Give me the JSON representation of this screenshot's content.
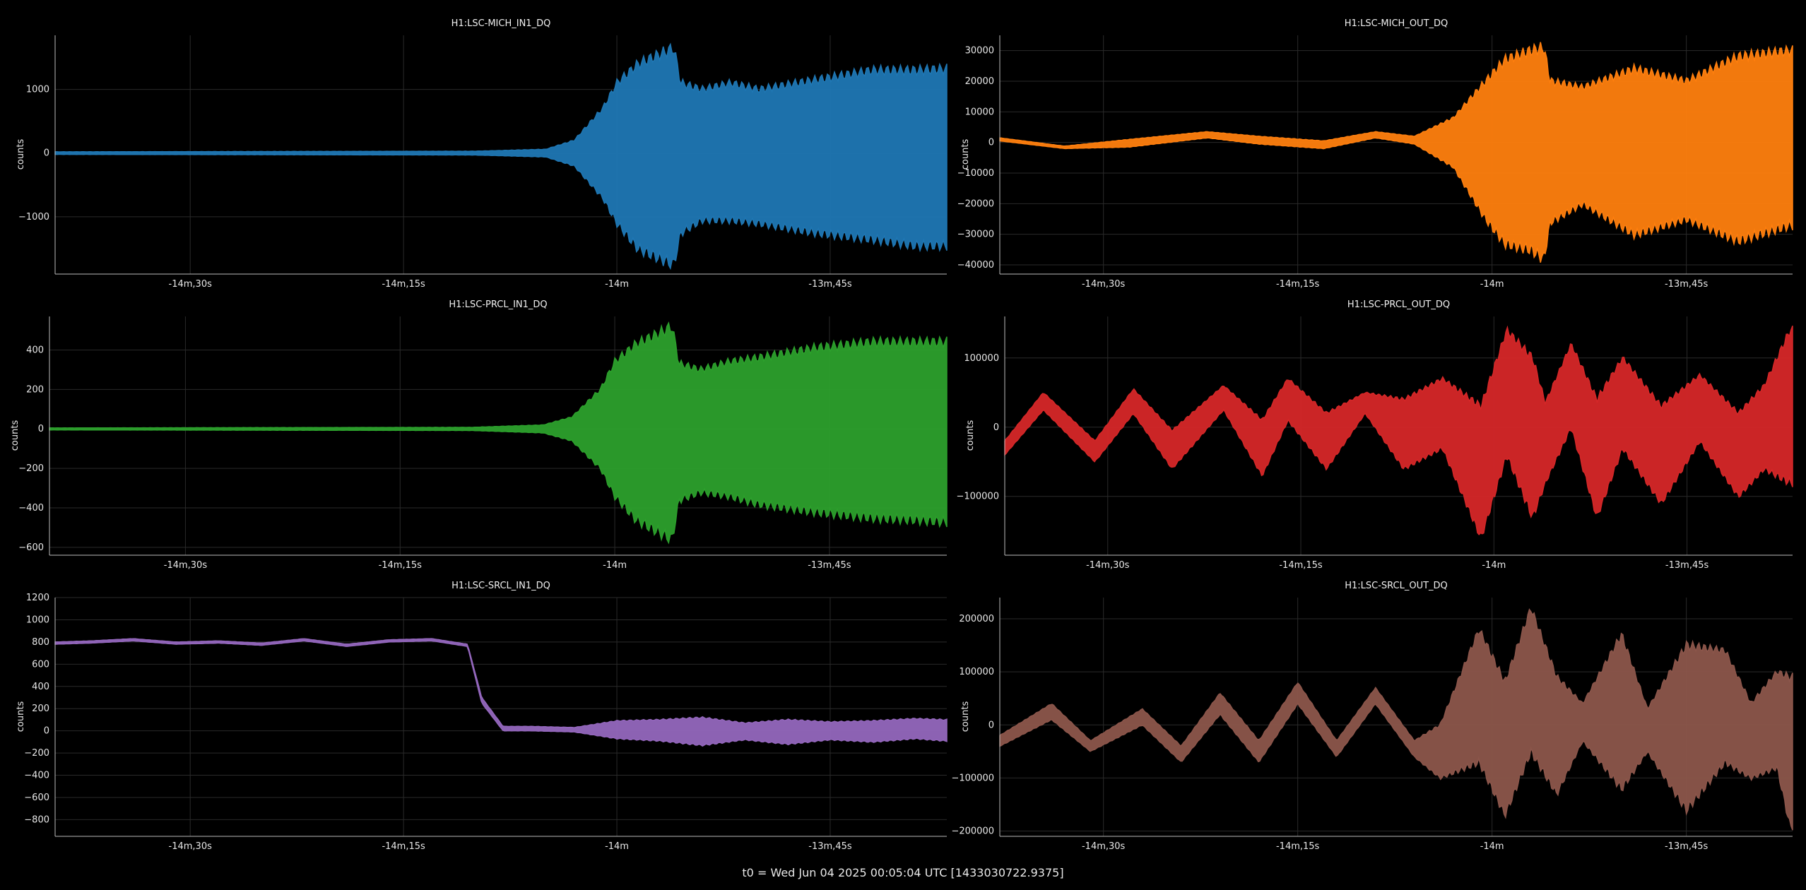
{
  "footer": "t0 = Wed Jun 04 2025 00:05:04 UTC [1433030722.9375]",
  "chart_data": [
    {
      "type": "line",
      "title": "H1:LSC-MICH_IN1_DQ",
      "ylabel": "counts",
      "color": "#1f77b4",
      "x_ticks": [
        "-14m,30s",
        "-14m,15s",
        "-14m",
        "-13m,45s"
      ],
      "x_tick_seconds": [
        -870,
        -855,
        -840,
        -825
      ],
      "xlim_seconds": [
        -879.5,
        -816.8
      ],
      "y_ticks": [
        1000,
        0,
        -1000
      ],
      "ylim": [
        -1900,
        1850
      ],
      "envelope": {
        "t": [
          -879.5,
          -850,
          -845,
          -843,
          -841,
          -840,
          -838.5,
          -837,
          -836,
          -835.5,
          -834,
          -832,
          -830,
          -826,
          -822,
          -819,
          -817
        ],
        "upper": [
          20,
          30,
          60,
          200,
          700,
          1100,
          1400,
          1550,
          1650,
          1100,
          1000,
          1100,
          1000,
          1150,
          1300,
          1300,
          1320
        ],
        "lower": [
          -20,
          -30,
          -60,
          -200,
          -700,
          -1100,
          -1500,
          -1650,
          -1750,
          -1250,
          -1050,
          -1050,
          -1100,
          -1250,
          -1350,
          -1450,
          -1450
        ]
      }
    },
    {
      "type": "line",
      "title": "H1:LSC-MICH_OUT_DQ",
      "ylabel": "counts",
      "color": "#ff7f0e",
      "x_ticks": [
        "-14m,30s",
        "-14m,15s",
        "-14m",
        "-13m,45s"
      ],
      "x_tick_seconds": [
        -870,
        -855,
        -840,
        -825
      ],
      "xlim_seconds": [
        -878.0,
        -816.8
      ],
      "y_ticks": [
        30000,
        20000,
        10000,
        0,
        -10000,
        -20000,
        -30000,
        -40000
      ],
      "ylim": [
        -43000,
        35000
      ],
      "envelope": {
        "t": [
          -878,
          -873,
          -868,
          -862,
          -858,
          -853,
          -849,
          -846,
          -843,
          -840.5,
          -839,
          -837,
          -836,
          -835.5,
          -833,
          -829,
          -825,
          -821,
          -817
        ],
        "upper": [
          1500,
          -1200,
          1000,
          3500,
          2000,
          500,
          3500,
          2000,
          8000,
          20000,
          27000,
          30000,
          31000,
          20000,
          18000,
          24000,
          20000,
          28000,
          30000
        ],
        "lower": [
          500,
          -2000,
          -1500,
          1500,
          -500,
          -2000,
          1500,
          -500,
          -8000,
          -25000,
          -33000,
          -35000,
          -38000,
          -26000,
          -20000,
          -30000,
          -25000,
          -32000,
          -27000
        ]
      }
    },
    {
      "type": "line",
      "title": "H1:LSC-PRCL_IN1_DQ",
      "ylabel": "counts",
      "color": "#2ca02c",
      "x_ticks": [
        "-14m,30s",
        "-14m,15s",
        "-14m",
        "-13m,45s"
      ],
      "x_tick_seconds": [
        -870,
        -855,
        -840,
        -825
      ],
      "xlim_seconds": [
        -879.5,
        -816.8
      ],
      "y_ticks": [
        400,
        200,
        0,
        -200,
        -400,
        -600
      ],
      "ylim": [
        -640,
        570
      ],
      "envelope": {
        "t": [
          -879.5,
          -850,
          -845,
          -843,
          -841,
          -840,
          -838.5,
          -837,
          -836,
          -835.5,
          -834,
          -832,
          -830,
          -826,
          -822,
          -819,
          -817
        ],
        "upper": [
          5,
          8,
          20,
          60,
          200,
          340,
          430,
          480,
          520,
          330,
          300,
          340,
          360,
          410,
          440,
          440,
          440
        ],
        "lower": [
          -5,
          -8,
          -20,
          -60,
          -200,
          -340,
          -460,
          -520,
          -560,
          -360,
          -320,
          -340,
          -380,
          -420,
          -450,
          -460,
          -470
        ]
      }
    },
    {
      "type": "line",
      "title": "H1:LSC-PRCL_OUT_DQ",
      "ylabel": "counts",
      "color": "#d62728",
      "x_ticks": [
        "-14m,30s",
        "-14m,15s",
        "-14m",
        "-13m,45s"
      ],
      "x_tick_seconds": [
        -870,
        -855,
        -840,
        -825
      ],
      "xlim_seconds": [
        -878.0,
        -816.8
      ],
      "y_ticks": [
        100000,
        0,
        -100000
      ],
      "ylim": [
        -185000,
        160000
      ],
      "envelope": {
        "t": [
          -878,
          -875,
          -871,
          -868,
          -865,
          -861,
          -858,
          -856,
          -853,
          -850,
          -847,
          -844,
          -841,
          -839,
          -837,
          -836,
          -834,
          -832,
          -830,
          -827,
          -824,
          -821,
          -819,
          -817
        ],
        "upper": [
          -20000,
          50000,
          -20000,
          55000,
          -5000,
          60000,
          10000,
          70000,
          20000,
          50000,
          40000,
          70000,
          30000,
          140000,
          100000,
          35000,
          120000,
          40000,
          100000,
          30000,
          75000,
          20000,
          60000,
          140000
        ],
        "lower": [
          -40000,
          25000,
          -50000,
          20000,
          -60000,
          25000,
          -70000,
          10000,
          -60000,
          20000,
          -60000,
          -30000,
          -160000,
          -40000,
          -130000,
          -80000,
          0,
          -130000,
          -30000,
          -110000,
          -20000,
          -100000,
          -60000,
          -80000
        ]
      }
    },
    {
      "type": "line",
      "title": "H1:LSC-SRCL_IN1_DQ",
      "ylabel": "counts",
      "color": "#9467bd",
      "x_ticks": [
        "-14m,30s",
        "-14m,15s",
        "-14m",
        "-13m,45s"
      ],
      "x_tick_seconds": [
        -870,
        -855,
        -840,
        -825
      ],
      "xlim_seconds": [
        -879.5,
        -816.8
      ],
      "y_ticks": [
        1200,
        1000,
        800,
        600,
        400,
        200,
        0,
        -200,
        -400,
        -600,
        -800
      ],
      "ylim": [
        -950,
        1200
      ],
      "envelope": {
        "t": [
          -879.5,
          -877,
          -874,
          -871,
          -868,
          -865,
          -862,
          -859,
          -856,
          -853,
          -850.5,
          -849.5,
          -848,
          -846,
          -843,
          -840,
          -837,
          -834,
          -831,
          -828,
          -825,
          -822,
          -819,
          -817
        ],
        "upper": [
          800,
          810,
          830,
          800,
          810,
          790,
          830,
          780,
          820,
          830,
          780,
          300,
          40,
          40,
          30,
          90,
          100,
          120,
          70,
          100,
          80,
          90,
          110,
          100
        ],
        "lower": [
          780,
          790,
          810,
          780,
          790,
          770,
          810,
          760,
          800,
          810,
          760,
          250,
          0,
          0,
          -10,
          -70,
          -90,
          -130,
          -80,
          -120,
          -80,
          -100,
          -70,
          -90
        ]
      }
    },
    {
      "type": "line",
      "title": "H1:LSC-SRCL_OUT_DQ",
      "ylabel": "counts",
      "color": "#8c564b",
      "x_ticks": [
        "-14m,30s",
        "-14m,15s",
        "-14m",
        "-13m,45s"
      ],
      "x_tick_seconds": [
        -870,
        -855,
        -840,
        -825
      ],
      "xlim_seconds": [
        -878.0,
        -816.8
      ],
      "y_ticks": [
        200000,
        100000,
        0,
        -100000,
        -200000
      ],
      "ylim": [
        -210000,
        240000
      ],
      "envelope": {
        "t": [
          -878,
          -874,
          -871,
          -867,
          -864,
          -861,
          -858,
          -855,
          -852,
          -849,
          -846,
          -844,
          -841,
          -839,
          -837,
          -835,
          -833,
          -830,
          -828,
          -825,
          -822,
          -820,
          -818,
          -817
        ],
        "upper": [
          -20000,
          40000,
          -30000,
          30000,
          -40000,
          60000,
          -30000,
          80000,
          -30000,
          70000,
          -30000,
          0,
          180000,
          80000,
          220000,
          90000,
          40000,
          170000,
          30000,
          150000,
          140000,
          40000,
          100000,
          90000
        ],
        "lower": [
          -40000,
          10000,
          -50000,
          0,
          -70000,
          20000,
          -70000,
          40000,
          -60000,
          40000,
          -60000,
          -100000,
          -70000,
          -170000,
          -50000,
          -130000,
          -30000,
          -120000,
          -50000,
          -160000,
          -70000,
          -100000,
          -80000,
          -190000
        ]
      }
    }
  ]
}
